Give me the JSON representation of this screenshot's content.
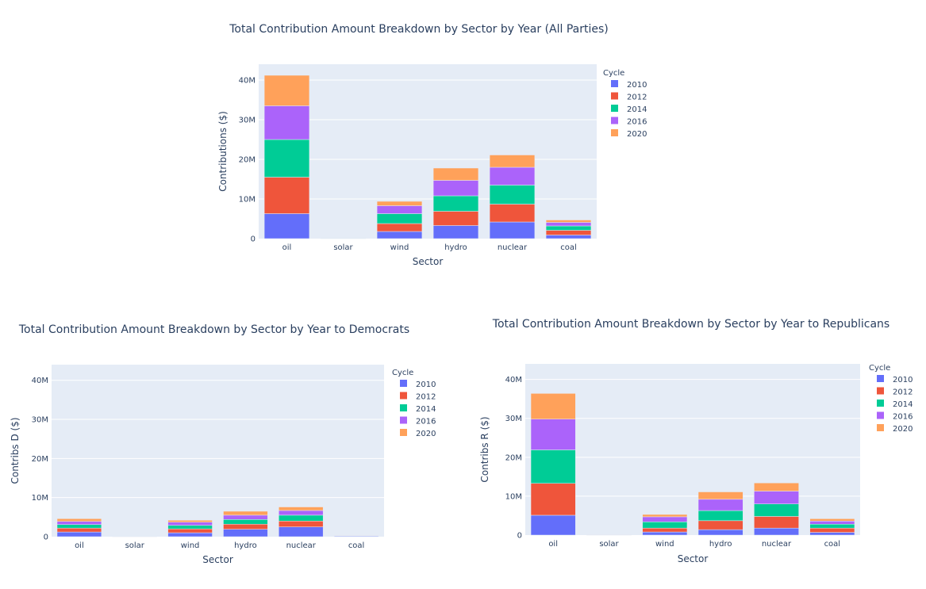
{
  "colors": {
    "plot_bg": "#e5ecf6",
    "grid": "#ffffff",
    "2010": "#636efa",
    "2012": "#ef553b",
    "2014": "#00cc96",
    "2016": "#ab63fa",
    "2020": "#ffa15a"
  },
  "chart_data": [
    {
      "type": "bar",
      "stacked": true,
      "title": "Total Contribution Amount Breakdown by Sector by Year (All Parties)",
      "xlabel": "Sector",
      "ylabel": "Contributions ($)",
      "legend_title": "Cycle",
      "legend_position": "right",
      "categories": [
        "oil",
        "solar",
        "wind",
        "hydro",
        "nuclear",
        "coal"
      ],
      "ylim": [
        0,
        44000000
      ],
      "yticks": [
        0,
        10000000,
        20000000,
        30000000,
        40000000
      ],
      "ytick_labels": [
        "0",
        "10M",
        "20M",
        "30M",
        "40M"
      ],
      "series": [
        {
          "name": "2010",
          "values": [
            6300000,
            50000,
            1800000,
            3300000,
            4200000,
            900000
          ]
        },
        {
          "name": "2012",
          "values": [
            9200000,
            30000,
            2000000,
            3600000,
            4500000,
            1200000
          ]
        },
        {
          "name": "2014",
          "values": [
            9500000,
            30000,
            2500000,
            3900000,
            4800000,
            1100000
          ]
        },
        {
          "name": "2016",
          "values": [
            8500000,
            20000,
            2000000,
            3900000,
            4500000,
            900000
          ]
        },
        {
          "name": "2020",
          "values": [
            7700000,
            20000,
            1100000,
            3100000,
            3100000,
            600000
          ]
        }
      ]
    },
    {
      "type": "bar",
      "stacked": true,
      "title": "Total Contribution Amount Breakdown by Sector by Year to Democrats",
      "xlabel": "Sector",
      "ylabel": "Contribs D ($)",
      "legend_title": "Cycle",
      "legend_position": "right",
      "categories": [
        "oil",
        "solar",
        "wind",
        "hydro",
        "nuclear",
        "coal"
      ],
      "ylim": [
        0,
        44000000
      ],
      "yticks": [
        0,
        10000000,
        20000000,
        30000000,
        40000000
      ],
      "ytick_labels": [
        "0",
        "10M",
        "20M",
        "30M",
        "40M"
      ],
      "series": [
        {
          "name": "2010",
          "values": [
            1200000,
            20000,
            1000000,
            1900000,
            2500000,
            150000
          ]
        },
        {
          "name": "2012",
          "values": [
            1000000,
            10000,
            1000000,
            1300000,
            1500000,
            100000
          ]
        },
        {
          "name": "2014",
          "values": [
            900000,
            10000,
            900000,
            1200000,
            1500000,
            80000
          ]
        },
        {
          "name": "2016",
          "values": [
            800000,
            10000,
            800000,
            1100000,
            1200000,
            70000
          ]
        },
        {
          "name": "2020",
          "values": [
            700000,
            10000,
            500000,
            1000000,
            900000,
            50000
          ]
        }
      ]
    },
    {
      "type": "bar",
      "stacked": true,
      "title": "Total Contribution Amount Breakdown by Sector by Year to Republicans",
      "xlabel": "Sector",
      "ylabel": "Contribs R ($)",
      "legend_title": "Cycle",
      "legend_position": "right",
      "categories": [
        "oil",
        "solar",
        "wind",
        "hydro",
        "nuclear",
        "coal"
      ],
      "ylim": [
        0,
        44000000
      ],
      "yticks": [
        0,
        10000000,
        20000000,
        30000000,
        40000000
      ],
      "ytick_labels": [
        "0",
        "10M",
        "20M",
        "30M",
        "40M"
      ],
      "series": [
        {
          "name": "2010",
          "values": [
            5100000,
            30000,
            800000,
            1400000,
            1800000,
            700000
          ]
        },
        {
          "name": "2012",
          "values": [
            8200000,
            20000,
            1000000,
            2300000,
            3000000,
            1100000
          ]
        },
        {
          "name": "2014",
          "values": [
            8600000,
            20000,
            1600000,
            2600000,
            3200000,
            1000000
          ]
        },
        {
          "name": "2016",
          "values": [
            7900000,
            10000,
            1300000,
            2900000,
            3300000,
            800000
          ]
        },
        {
          "name": "2020",
          "values": [
            6600000,
            10000,
            600000,
            1900000,
            2100000,
            600000
          ]
        }
      ]
    }
  ]
}
